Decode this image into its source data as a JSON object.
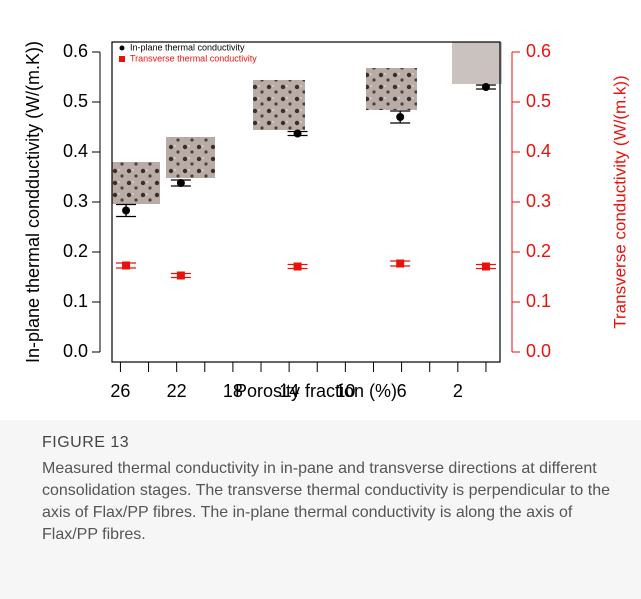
{
  "chart_data": {
    "type": "scatter",
    "legend": "top-left",
    "x_label": "Porosity fraction (%)",
    "y_label": "In-plane thermal condductivity (W/(m.K))",
    "y2_label": "Transverse conductivity (W/(m.k))",
    "xlim": [
      26.6,
      -1
    ],
    "xticks": [
      26,
      22,
      18,
      14,
      10,
      6,
      2
    ],
    "xminor_ticks": [
      24,
      20,
      16,
      12,
      8,
      4,
      0
    ],
    "ylim": [
      -0.02,
      0.62
    ],
    "yticks": [
      {
        "value": 0,
        "label": "0.0"
      },
      0.1,
      0.2,
      0.3,
      0.4,
      0.5,
      0.6
    ],
    "y2lim": [
      -0.02,
      0.62
    ],
    "y2ticks": [
      {
        "value": 0,
        "label": "0.0"
      },
      0.1,
      0.2,
      0.3,
      0.4,
      0.5,
      0.6
    ],
    "y2color": "#e8120c",
    "x": [
      25.6,
      21.7,
      13.4,
      6.1,
      0.0
    ],
    "series": [
      {
        "name": "In-plane thermal conductivity",
        "color": "#000000",
        "marker": "circle",
        "values": [
          0.283,
          0.338,
          0.437,
          0.47,
          0.53
        ],
        "errors": [
          0.012,
          0.006,
          0.004,
          0.012,
          0.004
        ]
      },
      {
        "name": "Transverse thermal conductivity",
        "color": "#e8120c",
        "marker": "square",
        "axis": "y2",
        "values": [
          0.173,
          0.153,
          0.171,
          0.177,
          0.171
        ],
        "errors": [
          0.005,
          0.004,
          0.004,
          0.005,
          0.004
        ]
      }
    ],
    "figure_label": "FIGURE 13",
    "caption": "Measured thermal conductivity in in-pane and transverse directions at different consolidation stages. The transverse thermal conductivity is perpendicular to the axis of Flax/PP fibres. The in-plane thermal conductivity is along the axis of Flax/PP fibres."
  }
}
